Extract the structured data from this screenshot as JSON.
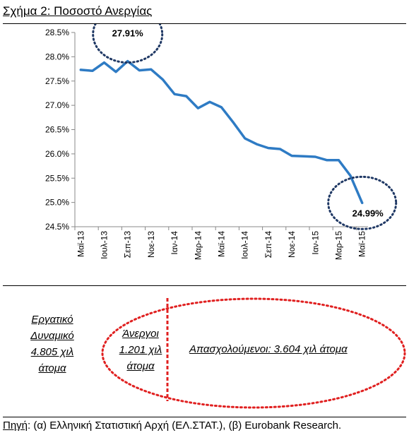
{
  "title_prefix": "Σχήμα 2",
  "title_rest": ": Ποσοστό Ανεργίας",
  "chart_data": {
    "type": "line",
    "title": "",
    "xlabel": "",
    "ylabel": "",
    "ylim": [
      24.5,
      28.5
    ],
    "yticks": [
      "24.5%",
      "25.0%",
      "25.5%",
      "26.0%",
      "26.5%",
      "27.0%",
      "27.5%",
      "28.0%",
      "28.5%"
    ],
    "ytick_values": [
      24.5,
      25.0,
      25.5,
      26.0,
      26.5,
      27.0,
      27.5,
      28.0,
      28.5
    ],
    "x": [
      "Μαϊ-13",
      "Ιουν-13",
      "Ιουλ-13",
      "Αυγ-13",
      "Σεπ-13",
      "Οκτ-13",
      "Νοε-13",
      "Δεκ-13",
      "Ιαν-14",
      "Φεβ-14",
      "Μαρ-14",
      "Απρ-14",
      "Μαϊ-14",
      "Ιουν-14",
      "Ιουλ-14",
      "Αυγ-14",
      "Σεπ-14",
      "Οκτ-14",
      "Νοε-14",
      "Δεκ-14",
      "Ιαν-15",
      "Φεβ-15",
      "Μαρ-15",
      "Απρ-15",
      "Μαϊ-15"
    ],
    "xtick_labels": [
      "Μαϊ-13",
      "Ιουλ-13",
      "Σεπ-13",
      "Νοε-13",
      "Ιαν-14",
      "Μαρ-14",
      "Μαϊ-14",
      "Ιουλ-14",
      "Σεπ-14",
      "Νοε-14",
      "Ιαν-15",
      "Μαρ-15",
      "Μαϊ-15"
    ],
    "series": [
      {
        "values": [
          27.73,
          27.71,
          27.88,
          27.69,
          27.91,
          27.72,
          27.74,
          27.53,
          27.23,
          27.19,
          26.94,
          27.07,
          26.96,
          26.65,
          26.32,
          26.2,
          26.12,
          26.1,
          25.96,
          25.95,
          25.94,
          25.87,
          25.87,
          25.55,
          24.99
        ]
      }
    ],
    "annotations": [
      {
        "text": "27.91%",
        "x": "Σεπ-13",
        "y": 27.91
      },
      {
        "text": "24.99%",
        "x": "Μαϊ-15",
        "y": 24.99
      }
    ],
    "grid": false,
    "line_color": "#2e7bc4",
    "annotation_color": "#1f3864"
  },
  "diagram": {
    "workforce": [
      "Εργατικό",
      "Δυναμικό",
      "4.805 χιλ",
      "άτομα"
    ],
    "unemployed": [
      "Άνεργοι",
      "1.201 χιλ",
      "άτομα"
    ],
    "employed": "Απασχολούμενοι: 3.604 χιλ άτομα",
    "ellipse_color": "#e02020"
  },
  "source_label": "Πηγή",
  "source_text": ": (α) Ελληνική Στατιστική Αρχή (ΕΛ.ΣΤΑΤ.), (β) Eurobank Research."
}
